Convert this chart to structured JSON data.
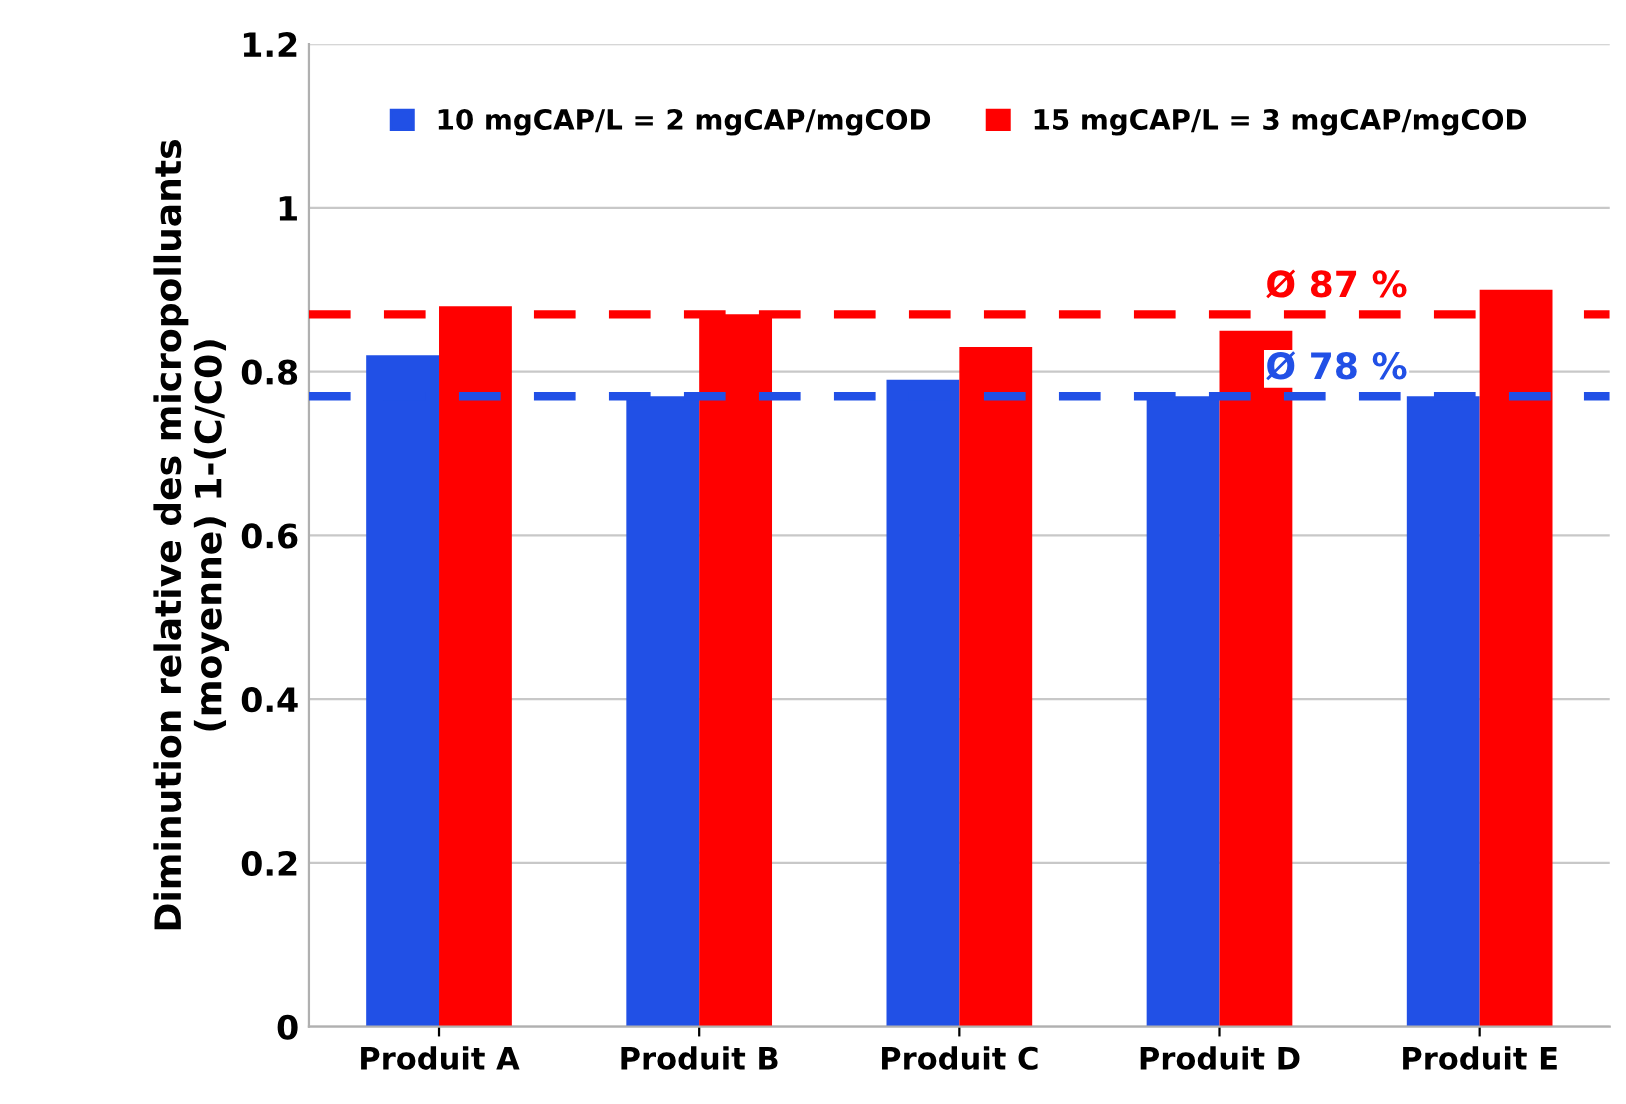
{
  "chart_data": {
    "type": "bar",
    "ylabel": "Diminution relative des micropolluants\n(moyenne) 1-(C/C0)",
    "categories": [
      "Produit A",
      "Produit B",
      "Produit C",
      "Produit D",
      "Produit E"
    ],
    "series": [
      {
        "name": "10 mgCAP/L = 2 mgCAP/mgCOD",
        "color": "#2150e6",
        "values": [
          0.82,
          0.77,
          0.79,
          0.77,
          0.77
        ]
      },
      {
        "name": "15 mgCAP/L = 3 mgCAP/mgCOD",
        "color": "#ff0000",
        "values": [
          0.88,
          0.87,
          0.83,
          0.85,
          0.9
        ]
      }
    ],
    "ref_lines": [
      {
        "axis": "y",
        "value": 0.87,
        "label": "Ø 87 %",
        "color": "#ff0000",
        "line_style": "dashed"
      },
      {
        "axis": "y",
        "value": 0.77,
        "label": "Ø 78 %",
        "color": "#2150e6",
        "line_style": "dashed"
      }
    ],
    "ylim": [
      0,
      1.2
    ],
    "yticks": [
      0,
      0.2,
      0.4,
      0.6,
      0.8,
      1,
      1.2
    ],
    "grid": "y",
    "legend": "top"
  }
}
